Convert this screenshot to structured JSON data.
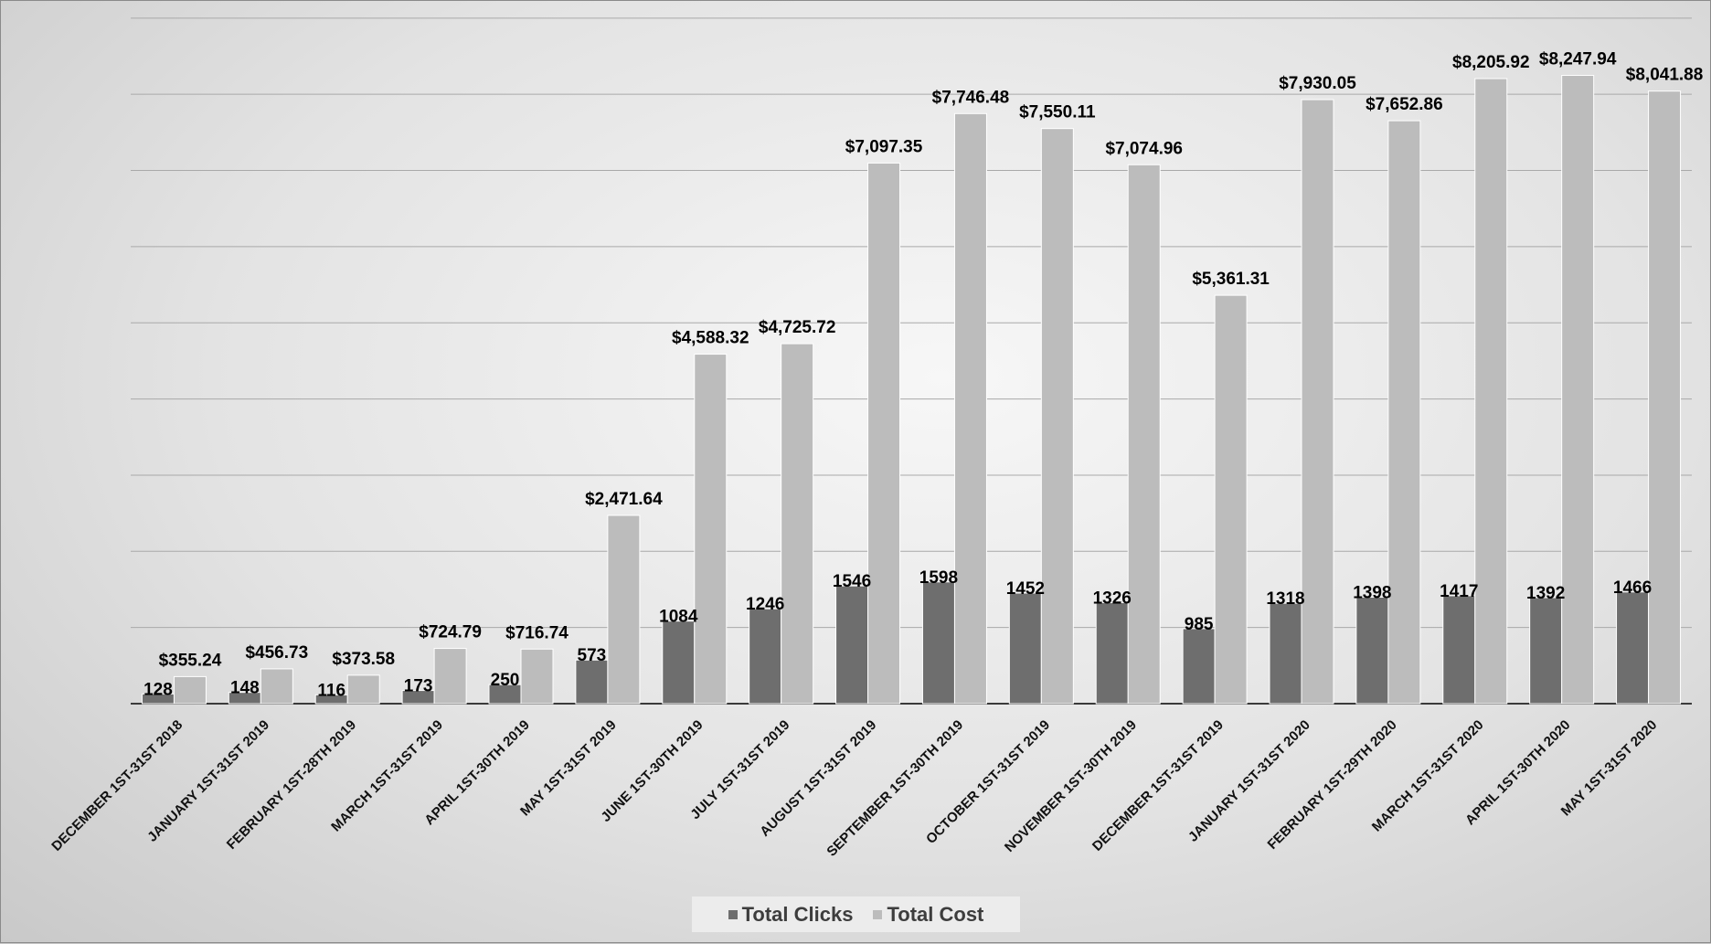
{
  "chart_data": {
    "type": "bar",
    "title": "",
    "xlabel": "",
    "ylabel": "",
    "ylim": [
      0,
      8000
    ],
    "grid": true,
    "legend_position": "bottom",
    "categories": [
      "DECEMBER 1ST-31ST 2018",
      "JANUARY 1ST-31ST 2019",
      "FEBRUARY 1ST-28TH 2019",
      "MARCH 1ST-31ST 2019",
      "APRIL 1ST-30TH 2019",
      "MAY 1ST-31ST 2019",
      "JUNE 1ST-30TH 2019",
      "JULY 1ST-31ST 2019",
      "AUGUST 1ST-31ST 2019",
      "SEPTEMBER 1ST-30TH 2019",
      "OCTOBER 1ST-31ST 2019",
      "NOVEMBER 1ST-30TH 2019",
      "DECEMBER 1ST-31ST 2019",
      "JANUARY 1ST-31ST 2020",
      "FEBRUARY 1ST-29TH 2020",
      "MARCH 1ST-31ST 2020",
      "APRIL 1ST-30TH 2020",
      "MAY 1ST-31ST 2020"
    ],
    "series": [
      {
        "name": "Total Clicks",
        "color": "#6e6e6e",
        "values": [
          128,
          148,
          116,
          173,
          250,
          573,
          1084,
          1246,
          1546,
          1598,
          1452,
          1326,
          985,
          1318,
          1398,
          1417,
          1392,
          1466
        ],
        "labels": [
          "128",
          "148",
          "116",
          "173",
          "250",
          "573",
          "1084",
          "1246",
          "1546",
          "1598",
          "1452",
          "1326",
          "985",
          "1318",
          "1398",
          "1417",
          "1392",
          "1466"
        ]
      },
      {
        "name": "Total Cost",
        "color": "#bcbcbc",
        "values": [
          355.24,
          456.73,
          373.58,
          724.79,
          716.74,
          2471.64,
          4588.32,
          4725.72,
          7097.35,
          7746.48,
          7550.11,
          7074.96,
          5361.31,
          7930.05,
          7652.86,
          8205.92,
          8247.94,
          8041.88
        ],
        "labels": [
          "$355.24",
          "$456.73",
          "$373.58",
          "$724.79",
          "$716.74",
          "$2,471.64",
          "$4,588.32",
          "$4,725.72",
          "$7,097.35",
          "$7,746.48",
          "$7,550.11",
          "$7,074.96",
          "$5,361.31",
          "$7,930.05",
          "$7,652.86",
          "$8,205.92",
          "$8,247.94",
          "$8,041.88"
        ]
      }
    ]
  },
  "legend": {
    "items": [
      {
        "label": "Total Clicks",
        "color": "#6e6e6e"
      },
      {
        "label": "Total Cost",
        "color": "#bcbcbc"
      }
    ]
  }
}
